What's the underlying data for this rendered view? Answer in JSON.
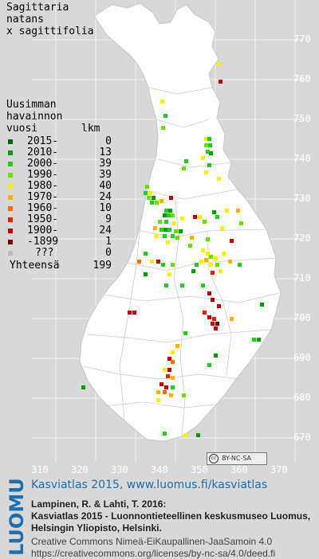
{
  "title": [
    "Sagittaria",
    "natans",
    "x sagittifolia"
  ],
  "legend": {
    "header": [
      "Uusimman",
      "havainnon"
    ],
    "col_year": "vuosi",
    "col_count": "lkm",
    "rows": [
      {
        "label": "2015-",
        "count": "0",
        "color": "#006400"
      },
      {
        "label": "2010-",
        "count": "13",
        "color": "#00a000"
      },
      {
        "label": "2000-",
        "count": "39",
        "color": "#22cc22"
      },
      {
        "label": "1990-",
        "count": "39",
        "color": "#66e000"
      },
      {
        "label": "1980-",
        "count": "40",
        "color": "#ffee00"
      },
      {
        "label": "1970-",
        "count": "24",
        "color": "#ffb000"
      },
      {
        "label": "1960-",
        "count": "10",
        "color": "#ff7000"
      },
      {
        "label": "1950-",
        "count": "9",
        "color": "#e02000"
      },
      {
        "label": "1900-",
        "count": "24",
        "color": "#c00000"
      },
      {
        "label": "-1899",
        "count": "1",
        "color": "#800000"
      },
      {
        "label": "???",
        "count": "0",
        "color": "#bbbbbb"
      }
    ],
    "total_label": "Yhteensä",
    "total": "199"
  },
  "axes": {
    "y_ticks": [
      "770",
      "760",
      "750",
      "740",
      "730",
      "720",
      "710",
      "700",
      "690",
      "680",
      "670"
    ],
    "x_ticks": [
      "310",
      "320",
      "330",
      "340",
      "350",
      "360",
      "370"
    ]
  },
  "license_badge": "BY-NC-SA",
  "footer": {
    "logo_text": "LUOMUS",
    "link": "Kasviatlas 2015, www.luomus.fi/kasviatlas",
    "citation": [
      "Lampinen, R. & Lahti, T. 2016:",
      "Kasviatlas 2015 - Luonnontieteellinen keskusmuseo Luomus,",
      "Helsingin Yliopisto, Helsinki."
    ],
    "license": [
      "Creative Commons Nimeä-EiKaupallinen-JaaSamoin 4.0",
      "https://creativecommons.org/licenses/by-nc-sa/4.0/deed.fi"
    ]
  },
  "colors": {
    "land": "#ffffff",
    "background": "#d8d8d8",
    "link": "#1d6fb0"
  }
}
